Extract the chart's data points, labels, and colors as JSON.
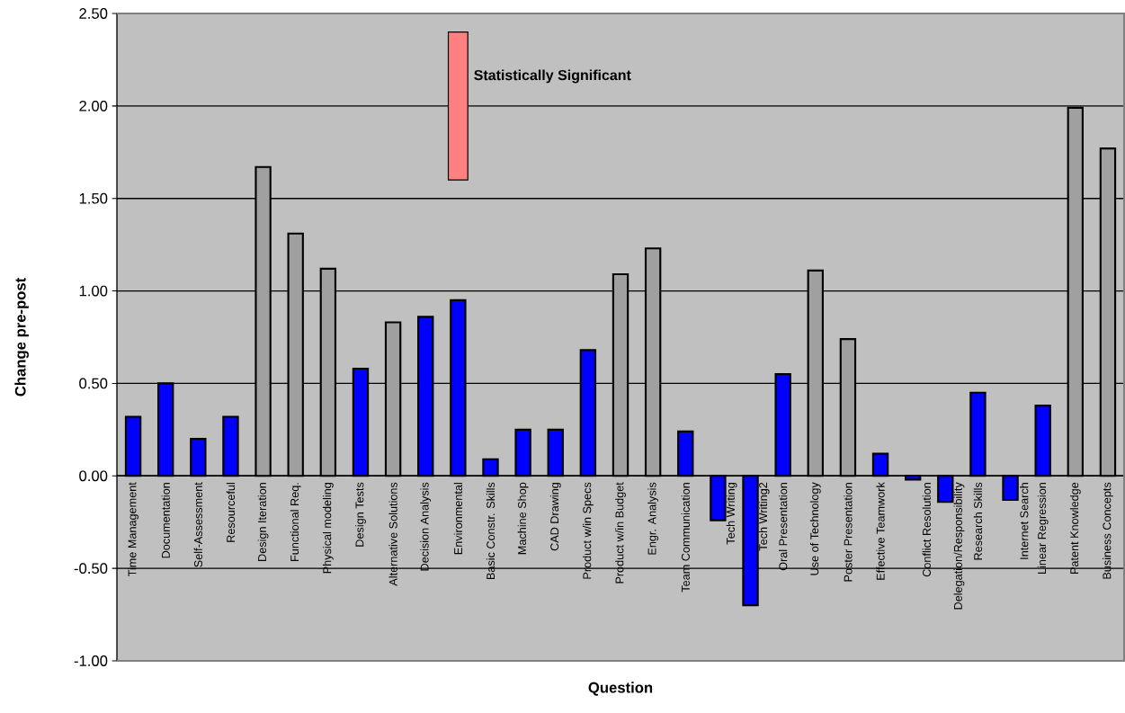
{
  "chart_data": {
    "type": "bar",
    "xlabel": "Question",
    "ylabel": "Change pre-post",
    "categories": [
      "Time Management",
      "Documentation",
      "Self-Assessment",
      "Resourceful",
      "Design Iteration",
      "Functional Req.",
      "Physical modeling",
      "Design Tests",
      "Alternative Solutions",
      "Decision Analysis",
      "Environmental",
      "Basic Constr. Skills",
      "Machine Shop",
      "CAD Drawing",
      "Product w/in Specs",
      "Product w/in Budget",
      "Engr. Analysis",
      "Team Communication",
      "Tech Writing",
      "Tech Writing2",
      "Oral Presentation",
      "Use of Technology",
      "Poster Presentation",
      "Effective Teamwork",
      "Conflict Resolution",
      "Delegation/Responsibility",
      "Research Skills",
      "Internet Search",
      "Linear Regression",
      "Patent Knowledge",
      "Business Concepts"
    ],
    "series": [
      {
        "values": [
          0.32,
          0.5,
          0.2,
          0.32,
          1.67,
          1.31,
          1.12,
          0.58,
          0.83,
          0.86,
          0.95,
          0.09,
          0.25,
          0.25,
          0.68,
          1.09,
          1.23,
          0.24,
          -0.24,
          -0.7,
          0.55,
          1.11,
          0.74,
          0.12,
          -0.02,
          -0.14,
          0.45,
          -0.13,
          0.38,
          1.99,
          1.77
        ],
        "colors": [
          "#0000ff",
          "#0000ff",
          "#0000ff",
          "#0000ff",
          "#a0a0a0",
          "#a0a0a0",
          "#a0a0a0",
          "#0000ff",
          "#a0a0a0",
          "#0000ff",
          "#0000ff",
          "#0000ff",
          "#0000ff",
          "#0000ff",
          "#0000ff",
          "#a0a0a0",
          "#a0a0a0",
          "#0000ff",
          "#0000ff",
          "#0000ff",
          "#0000ff",
          "#a0a0a0",
          "#a0a0a0",
          "#0000ff",
          "#0000ff",
          "#0000ff",
          "#0000ff",
          "#0000ff",
          "#0000ff",
          "#a0a0a0",
          "#a0a0a0"
        ]
      },
      {
        "name": "Statistically Significant",
        "color": "#ff8080",
        "values": [
          null,
          null,
          null,
          null,
          null,
          null,
          null,
          null,
          null,
          null,
          0.8,
          null,
          null,
          null,
          null,
          null,
          null,
          null,
          null,
          null,
          null,
          null,
          null,
          null,
          null,
          null,
          null,
          null,
          null,
          null,
          null
        ],
        "base": [
          null,
          null,
          null,
          null,
          null,
          null,
          null,
          null,
          null,
          null,
          1.6,
          null,
          null,
          null,
          null,
          null,
          null,
          null,
          null,
          null,
          null,
          null,
          null,
          null,
          null,
          null,
          null,
          null,
          null,
          null,
          null
        ]
      }
    ],
    "ylim": [
      -1.0,
      2.5
    ],
    "yticks": [
      {
        "value": -1.0,
        "label": "-1.00"
      },
      {
        "value": -0.5,
        "label": "-0.50"
      },
      {
        "value": 0,
        "label": "0.00"
      },
      {
        "value": 0.5,
        "label": "0.50"
      },
      {
        "value": 1.0,
        "label": "1.00"
      },
      {
        "value": 1.5,
        "label": "1.50"
      },
      {
        "value": 2.0,
        "label": "2.00"
      },
      {
        "value": 2.5,
        "label": "2.50"
      }
    ],
    "grid": "y"
  }
}
